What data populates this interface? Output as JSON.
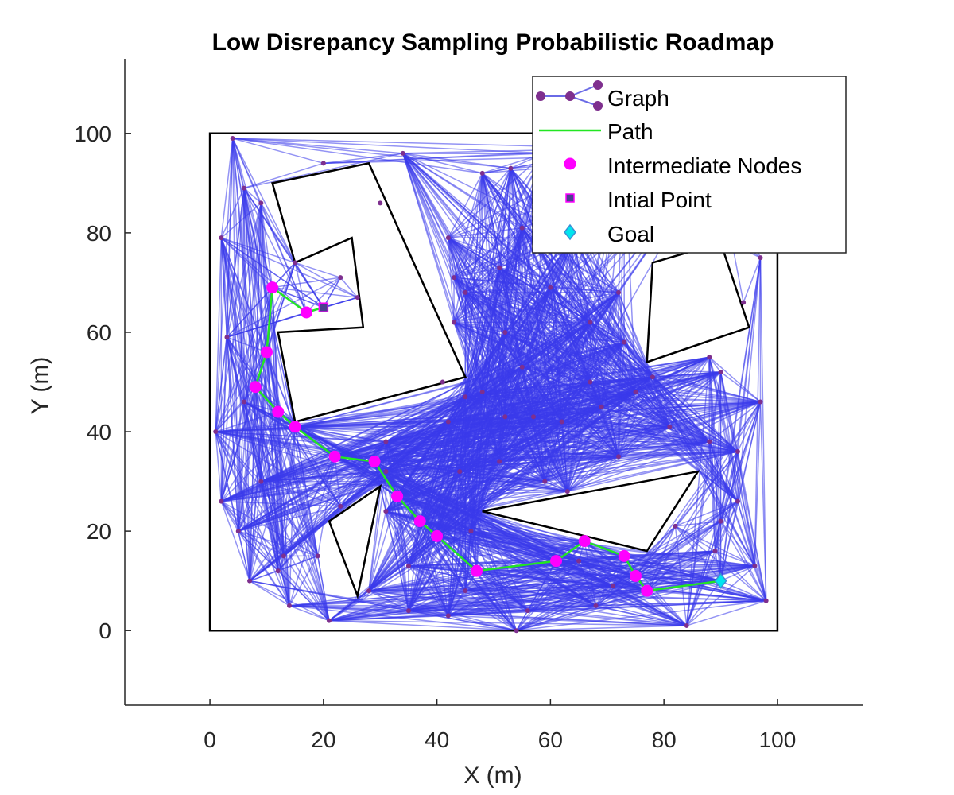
{
  "chart_data": {
    "type": "scatter",
    "title": "Low Disrepancy Sampling Probabilistic Roadmap",
    "xlabel": "X (m)",
    "ylabel": "Y (m)",
    "xlim": [
      -15,
      115
    ],
    "ylim": [
      -15,
      115
    ],
    "xticks": [
      "0",
      "20",
      "40",
      "60",
      "80",
      "100"
    ],
    "yticks": [
      "0",
      "20",
      "40",
      "60",
      "80",
      "100"
    ],
    "grid": false,
    "legend_position": "top-right",
    "legend": [
      "Graph",
      "Path",
      "Intermediate Nodes",
      "Intial Point",
      "Goal"
    ],
    "colors": {
      "graph_edge": "#3a3aeb",
      "graph_node": "#7e2f8e",
      "path": "#22e622",
      "intermediate": "#ff00ff",
      "initial": "#4b3f8f",
      "goal": "#00e5ee",
      "obstacle": "#000000"
    },
    "boundary": [
      [
        0,
        0
      ],
      [
        100,
        0
      ],
      [
        100,
        100
      ],
      [
        0,
        100
      ]
    ],
    "obstacles": [
      [
        [
          11,
          90
        ],
        [
          28,
          94
        ],
        [
          45,
          51
        ],
        [
          15,
          42
        ],
        [
          12,
          60
        ],
        [
          27,
          61
        ],
        [
          25,
          79
        ],
        [
          15,
          74
        ]
      ],
      [
        [
          21,
          22
        ],
        [
          30,
          29
        ],
        [
          26,
          7
        ]
      ],
      [
        [
          48,
          24
        ],
        [
          86,
          32
        ],
        [
          77,
          16
        ]
      ],
      [
        [
          78,
          74
        ],
        [
          77,
          54
        ],
        [
          95,
          61
        ],
        [
          90,
          78
        ]
      ]
    ],
    "graph_nodes": [
      [
        4,
        99
      ],
      [
        20,
        94
      ],
      [
        34,
        96
      ],
      [
        48,
        92
      ],
      [
        53,
        93
      ],
      [
        59,
        96
      ],
      [
        73,
        97
      ],
      [
        89,
        96
      ],
      [
        30,
        86
      ],
      [
        9,
        86
      ],
      [
        6,
        89
      ],
      [
        2,
        79
      ],
      [
        42,
        79
      ],
      [
        55,
        81
      ],
      [
        64,
        79
      ],
      [
        97,
        75
      ],
      [
        15,
        74
      ],
      [
        23,
        71
      ],
      [
        26,
        67
      ],
      [
        20,
        65
      ],
      [
        43,
        71
      ],
      [
        51,
        73
      ],
      [
        45,
        68
      ],
      [
        60,
        69
      ],
      [
        72,
        68
      ],
      [
        94,
        66
      ],
      [
        3,
        59
      ],
      [
        43,
        62
      ],
      [
        52,
        60
      ],
      [
        73,
        58
      ],
      [
        88,
        55
      ],
      [
        90,
        52
      ],
      [
        67,
        62
      ],
      [
        41,
        50
      ],
      [
        55,
        53
      ],
      [
        67,
        50
      ],
      [
        78,
        51
      ],
      [
        6,
        46
      ],
      [
        45,
        47
      ],
      [
        48,
        48
      ],
      [
        62,
        42
      ],
      [
        69,
        45
      ],
      [
        75,
        48
      ],
      [
        97,
        46
      ],
      [
        1,
        40
      ],
      [
        31,
        38
      ],
      [
        42,
        42
      ],
      [
        52,
        43
      ],
      [
        57,
        43
      ],
      [
        81,
        41
      ],
      [
        88,
        38
      ],
      [
        93,
        36
      ],
      [
        9,
        30
      ],
      [
        31,
        32
      ],
      [
        44,
        32
      ],
      [
        51,
        34
      ],
      [
        59,
        30
      ],
      [
        63,
        28
      ],
      [
        72,
        35
      ],
      [
        2,
        26
      ],
      [
        23,
        25
      ],
      [
        31,
        24
      ],
      [
        93,
        26
      ],
      [
        5,
        20
      ],
      [
        46,
        20
      ],
      [
        82,
        21
      ],
      [
        90,
        22
      ],
      [
        13,
        15
      ],
      [
        19,
        15
      ],
      [
        35,
        13
      ],
      [
        65,
        14
      ],
      [
        89,
        16
      ],
      [
        96,
        13
      ],
      [
        7,
        10
      ],
      [
        12,
        12
      ],
      [
        28,
        8
      ],
      [
        45,
        8
      ],
      [
        71,
        9
      ],
      [
        68,
        5
      ],
      [
        98,
        6
      ],
      [
        14,
        5
      ],
      [
        21,
        2
      ],
      [
        35,
        4
      ],
      [
        42,
        3
      ],
      [
        56,
        4
      ],
      [
        84,
        1
      ],
      [
        54,
        0
      ],
      [
        20,
        65
      ]
    ],
    "path": [
      [
        20,
        65
      ],
      [
        17,
        64
      ],
      [
        11,
        69
      ],
      [
        10,
        56
      ],
      [
        8,
        49
      ],
      [
        12,
        44
      ],
      [
        15,
        41
      ],
      [
        22,
        35
      ],
      [
        29,
        34
      ],
      [
        33,
        27
      ],
      [
        37,
        22
      ],
      [
        40,
        19
      ],
      [
        47,
        12
      ],
      [
        61,
        14
      ],
      [
        66,
        18
      ],
      [
        73,
        15
      ],
      [
        75,
        11
      ],
      [
        77,
        8
      ],
      [
        90,
        10
      ]
    ],
    "intermediate_nodes": [
      [
        17,
        64
      ],
      [
        11,
        69
      ],
      [
        10,
        56
      ],
      [
        8,
        49
      ],
      [
        12,
        44
      ],
      [
        15,
        41
      ],
      [
        22,
        35
      ],
      [
        29,
        34
      ],
      [
        33,
        27
      ],
      [
        37,
        22
      ],
      [
        40,
        19
      ],
      [
        47,
        12
      ],
      [
        61,
        14
      ],
      [
        66,
        18
      ],
      [
        73,
        15
      ],
      [
        75,
        11
      ],
      [
        77,
        8
      ]
    ],
    "initial_point": [
      20,
      65
    ],
    "goal": [
      90,
      10
    ]
  }
}
